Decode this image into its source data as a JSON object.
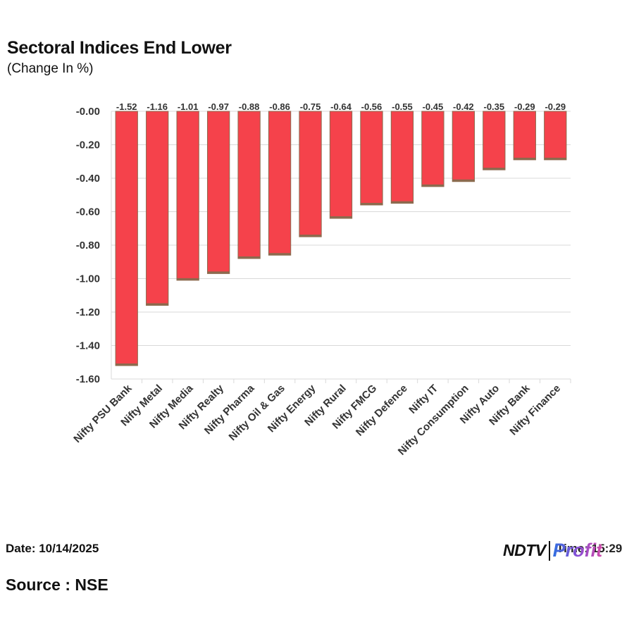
{
  "header": {
    "title": "Sectoral Indices End Lower",
    "subtitle": "(Change In %)"
  },
  "footer": {
    "date": "Date: 10/14/2025",
    "time": "Time: 15:29",
    "source": "Source : NSE"
  },
  "logo": {
    "brand": "NDTV",
    "product": "Profit"
  },
  "colors": {
    "bar_fill": "#f5424b",
    "bar_edge": "#8c6a4e",
    "grid": "#d9d9d9"
  },
  "chart_data": {
    "type": "bar",
    "title": "Sectoral Indices End Lower",
    "subtitle": "(Change In %)",
    "categories": [
      "Nifty PSU Bank",
      "Nifty Metal",
      "Nifty Media",
      "Nifty Realty",
      "Nifty Pharma",
      "Nifty Oil & Gas",
      "Nifty Energy",
      "Nifty Rural",
      "Nifty FMCG",
      "Nifty Defence",
      "Nifty IT",
      "Nifty Consumption",
      "Nifty Auto",
      "Nifty Bank",
      "Nifty Finance"
    ],
    "values": [
      -1.52,
      -1.16,
      -1.01,
      -0.97,
      -0.88,
      -0.86,
      -0.75,
      -0.64,
      -0.56,
      -0.55,
      -0.45,
      -0.42,
      -0.35,
      -0.29,
      -0.29
    ],
    "value_labels": [
      "-1.52",
      "-1.16",
      "-1.01",
      "-0.97",
      "-0.88",
      "-0.86",
      "-0.75",
      "-0.64",
      "-0.56",
      "-0.55",
      "-0.45",
      "-0.42",
      "-0.35",
      "-0.29",
      "-0.29"
    ],
    "ylim": [
      -1.6,
      0
    ],
    "yticks": [
      0,
      -0.2,
      -0.4,
      -0.6,
      -0.8,
      -1.0,
      -1.2,
      -1.4,
      -1.6
    ],
    "ytick_labels": [
      "-0.00",
      "-0.20",
      "-0.40",
      "-0.60",
      "-0.80",
      "-1.00",
      "-1.20",
      "-1.40",
      "-1.60"
    ],
    "grid": true,
    "legend": "none"
  }
}
